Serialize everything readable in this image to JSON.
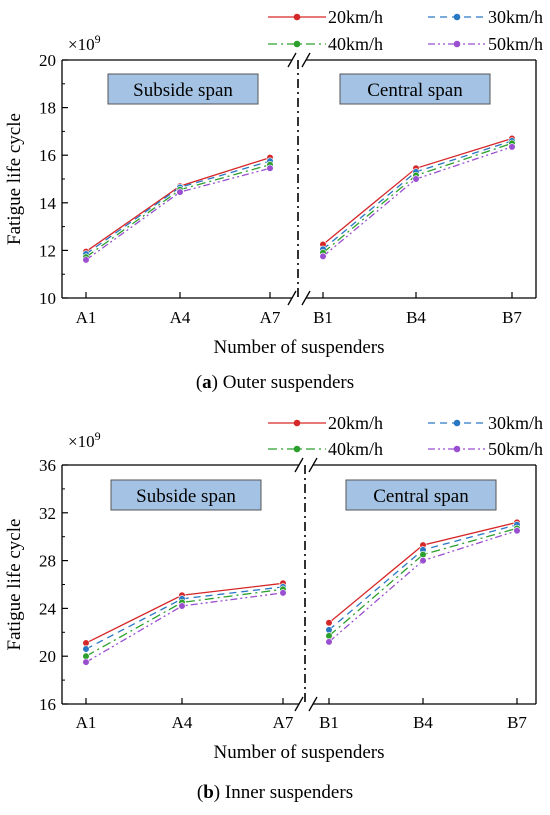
{
  "series_styles": [
    {
      "color": "#d62728",
      "dash": ""
    },
    {
      "color": "#2a78c4",
      "dash": "7 5"
    },
    {
      "color": "#2ca02c",
      "dash": "9 4 2 4"
    },
    {
      "color": "#9a4fd0",
      "dash": "7 3 2 3 2 3"
    }
  ],
  "span_box_fill": "#a4c2e3",
  "chart_data": [
    {
      "type": "line",
      "panel": "a",
      "caption_letter": "a",
      "caption_text": "Outer suspenders",
      "ylabel": "Fatigue life cycle",
      "xlabel": "Number of suspenders",
      "multiplier_base": "×10",
      "multiplier_exp": "9",
      "ylim": [
        10,
        20
      ],
      "yticks": [
        10,
        12,
        14,
        16,
        18,
        20
      ],
      "left_label": "Subside span",
      "right_label": "Central span",
      "left_categories": [
        "A1",
        "A4",
        "A7"
      ],
      "right_categories": [
        "B1",
        "B4",
        "B7"
      ],
      "series": [
        {
          "name": "20km/h",
          "left": [
            11.95,
            14.7,
            15.9
          ],
          "right": [
            12.25,
            15.45,
            16.7
          ]
        },
        {
          "name": "30km/h",
          "left": [
            11.85,
            14.65,
            15.75
          ],
          "right": [
            12.05,
            15.3,
            16.6
          ]
        },
        {
          "name": "40km/h",
          "left": [
            11.72,
            14.55,
            15.6
          ],
          "right": [
            11.9,
            15.15,
            16.5
          ]
        },
        {
          "name": "50km/h",
          "left": [
            11.6,
            14.45,
            15.45
          ],
          "right": [
            11.75,
            15.0,
            16.35
          ]
        }
      ]
    },
    {
      "type": "line",
      "panel": "b",
      "caption_letter": "b",
      "caption_text": "Inner suspenders",
      "ylabel": "Fatigue life cycle",
      "xlabel": "Number of suspenders",
      "multiplier_base": "×10",
      "multiplier_exp": "9",
      "ylim": [
        16,
        36
      ],
      "yticks": [
        16,
        20,
        24,
        28,
        32,
        36
      ],
      "left_label": "Subside span",
      "right_label": "Central span",
      "left_categories": [
        "A1",
        "A4",
        "A7"
      ],
      "right_categories": [
        "B1",
        "B4",
        "B7"
      ],
      "series": [
        {
          "name": "20km/h",
          "left": [
            21.1,
            25.1,
            26.1
          ],
          "right": [
            22.8,
            29.3,
            31.2
          ]
        },
        {
          "name": "30km/h",
          "left": [
            20.6,
            24.8,
            25.8
          ],
          "right": [
            22.2,
            28.9,
            31.0
          ]
        },
        {
          "name": "40km/h",
          "left": [
            20.0,
            24.5,
            25.6
          ],
          "right": [
            21.7,
            28.5,
            30.7
          ]
        },
        {
          "name": "50km/h",
          "left": [
            19.5,
            24.2,
            25.3
          ],
          "right": [
            21.2,
            28.0,
            30.5
          ]
        }
      ]
    }
  ]
}
